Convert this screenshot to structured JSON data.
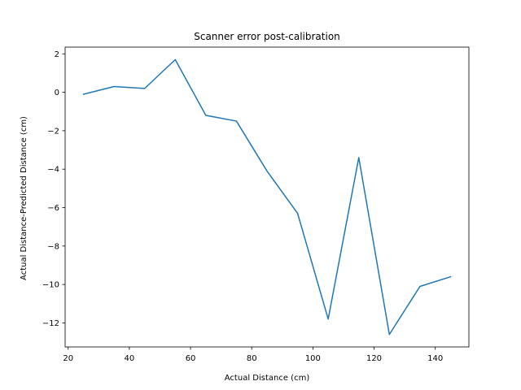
{
  "chart_data": {
    "type": "line",
    "title": "Scanner error post-calibration",
    "xlabel": "Actual Distance (cm)",
    "ylabel": "Actual Distance-Predicted Distance (cm)",
    "xlim": [
      19,
      151
    ],
    "ylim": [
      -13.25,
      2.35
    ],
    "xticks": [
      20,
      40,
      60,
      80,
      100,
      120,
      140
    ],
    "yticks": [
      2,
      0,
      -2,
      -4,
      -6,
      -8,
      -10,
      -12
    ],
    "grid": false,
    "series": [
      {
        "color": "#1f77b4",
        "x": [
          25,
          35,
          45,
          55,
          65,
          75,
          85,
          95,
          105,
          115,
          125,
          135,
          145
        ],
        "y": [
          -0.1,
          0.3,
          0.2,
          1.7,
          -1.2,
          -1.5,
          -4.1,
          -6.3,
          -11.8,
          -3.4,
          -12.6,
          -10.1,
          -9.6
        ]
      }
    ]
  }
}
